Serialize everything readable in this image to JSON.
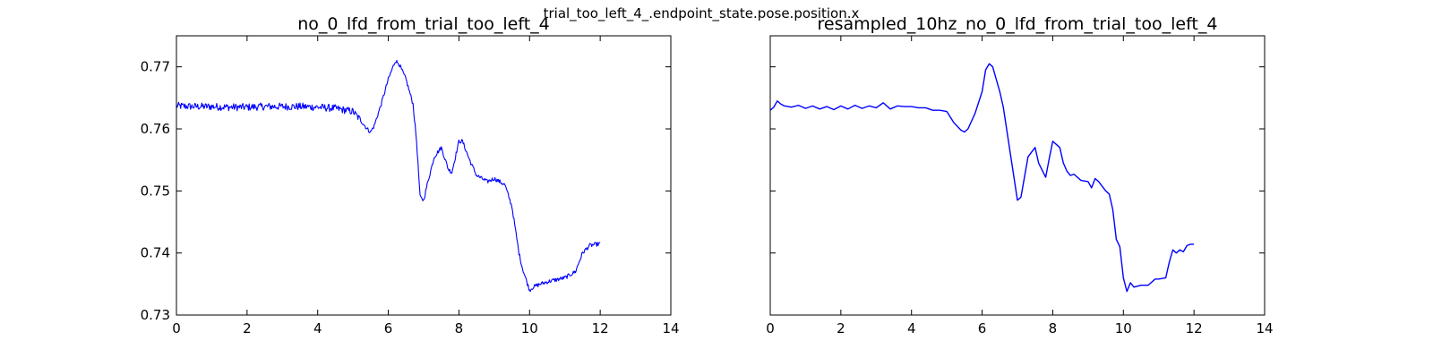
{
  "suptitle": "trial_too_left_4_.endpoint_state.pose.position.x",
  "chart_data": [
    {
      "type": "line",
      "title": "no_0_lfd_from_trial_too_left_4",
      "xlabel": "",
      "ylabel": "",
      "xlim": [
        0,
        14
      ],
      "ylim": [
        0.73,
        0.775
      ],
      "xticks": [
        "0",
        "2",
        "4",
        "6",
        "8",
        "10",
        "12",
        "14"
      ],
      "yticks": [
        "0.73",
        "0.74",
        "0.75",
        "0.76",
        "0.77"
      ],
      "grid": false,
      "line_color": "#0000ff",
      "series": [
        {
          "noise": 0.0006,
          "x": [
            0,
            0.5,
            1,
            1.5,
            2,
            2.5,
            3,
            3.5,
            4,
            4.5,
            5,
            5.2,
            5.4,
            5.5,
            5.6,
            5.8,
            6,
            6.2,
            6.3,
            6.5,
            6.7,
            6.8,
            6.9,
            7.0,
            7.1,
            7.3,
            7.5,
            7.7,
            7.8,
            8.0,
            8.1,
            8.3,
            8.5,
            8.8,
            9.0,
            9.3,
            9.5,
            9.7,
            9.8,
            10.0,
            10.1,
            10.3,
            10.6,
            11.0,
            11.3,
            11.5,
            11.7,
            12.0
          ],
          "y": [
            0.7637,
            0.7636,
            0.7636,
            0.7635,
            0.7635,
            0.7636,
            0.7636,
            0.7636,
            0.7635,
            0.7633,
            0.7628,
            0.7615,
            0.76,
            0.7595,
            0.7605,
            0.764,
            0.768,
            0.771,
            0.7705,
            0.768,
            0.764,
            0.758,
            0.749,
            0.7485,
            0.751,
            0.7555,
            0.757,
            0.7535,
            0.753,
            0.758,
            0.758,
            0.755,
            0.7525,
            0.7515,
            0.752,
            0.751,
            0.7475,
            0.74,
            0.7375,
            0.734,
            0.7345,
            0.735,
            0.7355,
            0.736,
            0.737,
            0.74,
            0.7412,
            0.7415
          ]
        }
      ]
    },
    {
      "type": "line",
      "title": "resampled_10hz_no_0_lfd_from_trial_too_left_4",
      "xlabel": "",
      "ylabel": "",
      "xlim": [
        0,
        14
      ],
      "ylim": [
        0.73,
        0.775
      ],
      "xticks": [
        "0",
        "2",
        "4",
        "6",
        "8",
        "10",
        "12",
        "14"
      ],
      "yticks": [],
      "grid": false,
      "line_color": "#0000ff",
      "series": [
        {
          "noise": 0,
          "x": [
            0,
            0.1,
            0.2,
            0.3,
            0.4,
            0.6,
            0.8,
            1.0,
            1.2,
            1.4,
            1.6,
            1.8,
            2.0,
            2.2,
            2.4,
            2.6,
            2.8,
            3.0,
            3.2,
            3.4,
            3.6,
            3.8,
            4.0,
            4.2,
            4.4,
            4.6,
            4.8,
            5.0,
            5.2,
            5.4,
            5.5,
            5.6,
            5.8,
            6.0,
            6.1,
            6.2,
            6.3,
            6.4,
            6.5,
            6.6,
            6.8,
            7.0,
            7.1,
            7.3,
            7.5,
            7.6,
            7.8,
            7.9,
            8.0,
            8.1,
            8.2,
            8.3,
            8.4,
            8.5,
            8.6,
            8.8,
            9.0,
            9.1,
            9.2,
            9.3,
            9.5,
            9.6,
            9.7,
            9.8,
            9.9,
            10.0,
            10.1,
            10.2,
            10.3,
            10.5,
            10.7,
            10.9,
            11.0,
            11.2,
            11.3,
            11.4,
            11.5,
            11.6,
            11.7,
            11.8,
            11.9,
            12.0
          ],
          "y": [
            0.763,
            0.7635,
            0.7645,
            0.764,
            0.7637,
            0.7635,
            0.7638,
            0.7633,
            0.7637,
            0.7632,
            0.7636,
            0.7631,
            0.7637,
            0.7632,
            0.7638,
            0.7633,
            0.7637,
            0.7634,
            0.7642,
            0.7632,
            0.7637,
            0.7636,
            0.7636,
            0.7634,
            0.7634,
            0.763,
            0.763,
            0.7628,
            0.761,
            0.7598,
            0.7595,
            0.76,
            0.7625,
            0.766,
            0.7695,
            0.7705,
            0.77,
            0.768,
            0.766,
            0.7635,
            0.756,
            0.7485,
            0.749,
            0.7555,
            0.757,
            0.7545,
            0.7522,
            0.7552,
            0.758,
            0.7575,
            0.757,
            0.7545,
            0.7532,
            0.7525,
            0.7527,
            0.7517,
            0.7515,
            0.7505,
            0.752,
            0.7515,
            0.75,
            0.7495,
            0.747,
            0.7422,
            0.741,
            0.736,
            0.7338,
            0.7352,
            0.7345,
            0.7348,
            0.7348,
            0.7358,
            0.7358,
            0.736,
            0.7385,
            0.7405,
            0.74,
            0.7405,
            0.7402,
            0.7412,
            0.7414,
            0.7414
          ]
        }
      ]
    }
  ]
}
